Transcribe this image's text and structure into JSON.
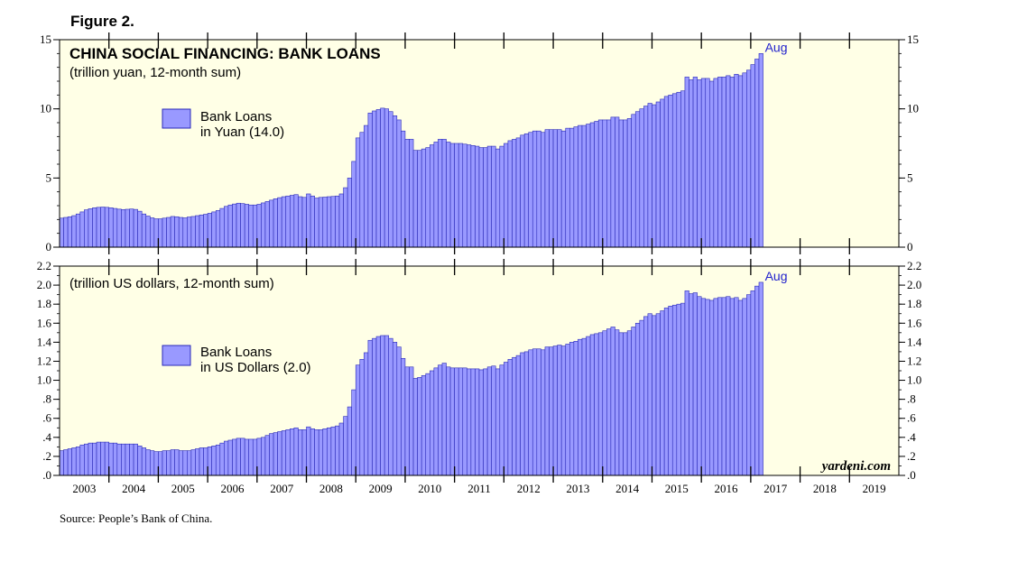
{
  "figure_label": "Figure 2.",
  "source": "Source: People’s Bank of China.",
  "watermark": "yardeni.com",
  "colors": {
    "bar_fill": "#9999ff",
    "bar_edge": "#2a2ab8",
    "panel_bg": "#ffffe6",
    "accent": "#2222cc"
  },
  "chart_data": [
    {
      "type": "bar",
      "title": "CHINA SOCIAL FINANCING: BANK LOANS",
      "subtitle": "(trillion yuan, 12-month sum)",
      "legend": {
        "label_line1": "Bank Loans",
        "label_line2": "in Yuan (14.0)",
        "placement": "left"
      },
      "end_annotation": "Aug",
      "ylim": [
        0,
        15
      ],
      "yticks": [
        0,
        5,
        10,
        15
      ],
      "ytick_labels": [
        "0",
        "5",
        "10",
        "15"
      ],
      "x_start": "2003-01",
      "x_end": "2017-08",
      "values": [
        2.1,
        2.15,
        2.2,
        2.28,
        2.4,
        2.55,
        2.7,
        2.78,
        2.85,
        2.88,
        2.9,
        2.88,
        2.85,
        2.8,
        2.75,
        2.72,
        2.74,
        2.76,
        2.73,
        2.6,
        2.4,
        2.25,
        2.12,
        2.05,
        2.05,
        2.1,
        2.15,
        2.22,
        2.2,
        2.15,
        2.12,
        2.18,
        2.22,
        2.28,
        2.33,
        2.38,
        2.45,
        2.55,
        2.65,
        2.8,
        2.95,
        3.05,
        3.12,
        3.18,
        3.15,
        3.1,
        3.05,
        3.05,
        3.1,
        3.2,
        3.3,
        3.4,
        3.5,
        3.58,
        3.65,
        3.7,
        3.75,
        3.8,
        3.65,
        3.6,
        3.85,
        3.7,
        3.55,
        3.6,
        3.62,
        3.65,
        3.67,
        3.7,
        3.85,
        4.3,
        5.0,
        6.2,
        7.9,
        8.3,
        8.8,
        9.7,
        9.85,
        9.95,
        10.05,
        10.0,
        9.8,
        9.5,
        9.2,
        8.4,
        7.8,
        7.8,
        7.0,
        7.0,
        7.1,
        7.2,
        7.4,
        7.6,
        7.8,
        7.8,
        7.6,
        7.5,
        7.5,
        7.5,
        7.45,
        7.4,
        7.35,
        7.3,
        7.2,
        7.2,
        7.3,
        7.3,
        7.1,
        7.3,
        7.5,
        7.7,
        7.8,
        7.9,
        8.1,
        8.2,
        8.3,
        8.4,
        8.4,
        8.3,
        8.5,
        8.5,
        8.5,
        8.5,
        8.4,
        8.6,
        8.6,
        8.7,
        8.8,
        8.8,
        8.9,
        9.0,
        9.1,
        9.2,
        9.2,
        9.2,
        9.4,
        9.4,
        9.2,
        9.2,
        9.3,
        9.6,
        9.8,
        10.0,
        10.2,
        10.4,
        10.3,
        10.5,
        10.7,
        10.9,
        11.0,
        11.1,
        11.2,
        11.3,
        12.3,
        12.1,
        12.3,
        12.1,
        12.2,
        12.2,
        12.0,
        12.2,
        12.3,
        12.3,
        12.4,
        12.3,
        12.5,
        12.4,
        12.6,
        12.8,
        13.2,
        13.6,
        14.0
      ]
    },
    {
      "type": "bar",
      "subtitle": "(trillion US dollars, 12-month sum)",
      "legend": {
        "label_line1": "Bank Loans",
        "label_line2": "in US Dollars (2.0)",
        "placement": "left"
      },
      "end_annotation": "Aug",
      "ylim": [
        0,
        2.2
      ],
      "yticks": [
        0,
        0.2,
        0.4,
        0.6,
        0.8,
        1.0,
        1.2,
        1.4,
        1.6,
        1.8,
        2.0,
        2.2
      ],
      "ytick_labels": [
        ".0",
        ".2",
        ".4",
        ".6",
        ".8",
        "1.0",
        "1.2",
        "1.4",
        "1.6",
        "1.8",
        "2.0",
        "2.2"
      ],
      "x_start": "2003-01",
      "x_end": "2017-08",
      "x_tick_labels": [
        "2003",
        "2004",
        "2005",
        "2006",
        "2007",
        "2008",
        "2009",
        "2010",
        "2011",
        "2012",
        "2013",
        "2014",
        "2015",
        "2016",
        "2017",
        "2018",
        "2019"
      ],
      "values": [
        0.26,
        0.27,
        0.28,
        0.29,
        0.3,
        0.32,
        0.33,
        0.34,
        0.34,
        0.35,
        0.35,
        0.35,
        0.34,
        0.34,
        0.33,
        0.33,
        0.33,
        0.33,
        0.33,
        0.31,
        0.29,
        0.27,
        0.26,
        0.25,
        0.25,
        0.26,
        0.26,
        0.27,
        0.27,
        0.26,
        0.26,
        0.26,
        0.27,
        0.28,
        0.29,
        0.29,
        0.3,
        0.31,
        0.32,
        0.34,
        0.36,
        0.37,
        0.38,
        0.39,
        0.39,
        0.38,
        0.38,
        0.38,
        0.39,
        0.4,
        0.42,
        0.44,
        0.45,
        0.46,
        0.47,
        0.48,
        0.49,
        0.5,
        0.48,
        0.48,
        0.51,
        0.49,
        0.48,
        0.48,
        0.49,
        0.5,
        0.51,
        0.52,
        0.55,
        0.62,
        0.72,
        0.9,
        1.16,
        1.22,
        1.29,
        1.42,
        1.44,
        1.46,
        1.47,
        1.47,
        1.44,
        1.4,
        1.35,
        1.23,
        1.14,
        1.14,
        1.02,
        1.03,
        1.05,
        1.07,
        1.1,
        1.13,
        1.16,
        1.18,
        1.14,
        1.13,
        1.13,
        1.13,
        1.13,
        1.12,
        1.12,
        1.12,
        1.11,
        1.12,
        1.14,
        1.15,
        1.12,
        1.16,
        1.19,
        1.22,
        1.24,
        1.26,
        1.29,
        1.3,
        1.32,
        1.33,
        1.33,
        1.32,
        1.35,
        1.35,
        1.36,
        1.37,
        1.36,
        1.38,
        1.4,
        1.41,
        1.43,
        1.44,
        1.46,
        1.48,
        1.49,
        1.5,
        1.52,
        1.54,
        1.56,
        1.53,
        1.5,
        1.5,
        1.52,
        1.56,
        1.6,
        1.63,
        1.67,
        1.7,
        1.68,
        1.7,
        1.73,
        1.76,
        1.78,
        1.79,
        1.8,
        1.81,
        1.94,
        1.91,
        1.92,
        1.88,
        1.86,
        1.85,
        1.84,
        1.86,
        1.87,
        1.87,
        1.88,
        1.86,
        1.87,
        1.84,
        1.86,
        1.9,
        1.94,
        1.99,
        2.03
      ]
    }
  ]
}
